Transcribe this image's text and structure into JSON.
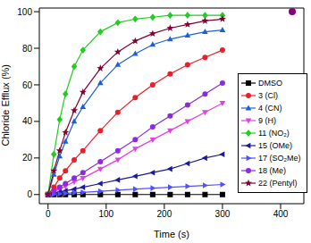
{
  "chart_data": {
    "type": "line",
    "xlabel": "Time (s)",
    "ylabel": "Chloride Efflux (%)",
    "x": [
      0,
      10,
      20,
      30,
      45,
      60,
      90,
      120,
      150,
      180,
      210,
      240,
      270,
      300
    ],
    "xlim": [
      -15,
      440
    ],
    "xticks": [
      0,
      100,
      200,
      300,
      400
    ],
    "ylim": [
      -5,
      102
    ],
    "yticks": [
      0,
      20,
      40,
      60,
      80,
      100
    ],
    "grid": false,
    "legend": "right",
    "series": [
      {
        "name": "DMSO",
        "color": "#000000",
        "marker": "square",
        "values": [
          0,
          0,
          0,
          0,
          0,
          0,
          0,
          0,
          0,
          0,
          0,
          0,
          0,
          0
        ]
      },
      {
        "name": "3 (Cl)",
        "color": "#e8202a",
        "marker": "circle",
        "values": [
          0,
          4,
          9,
          13,
          19,
          24,
          35,
          45,
          53,
          60,
          66,
          71,
          75,
          79
        ]
      },
      {
        "name": "4 (CN)",
        "color": "#1f5fd6",
        "marker": "triangle",
        "values": [
          0,
          11,
          21,
          29,
          40,
          48,
          61,
          71,
          77,
          82,
          85,
          87,
          89,
          90
        ]
      },
      {
        "name": "9 (H)",
        "color": "#e040e0",
        "marker": "triangle-down",
        "values": [
          0,
          1.5,
          3,
          4.5,
          7,
          9,
          14,
          19,
          25,
          30,
          35,
          40,
          45,
          50
        ]
      },
      {
        "name": "11 (NO₂)",
        "color": "#22cc22",
        "marker": "diamond",
        "values": [
          0,
          22,
          41,
          55,
          70,
          79,
          89,
          94,
          96,
          97,
          98,
          98,
          98,
          98
        ]
      },
      {
        "name": "15 (OMe)",
        "color": "#1a1a99",
        "marker": "triangle-left",
        "values": [
          0,
          0.7,
          1.4,
          2,
          3,
          4,
          6,
          8,
          10,
          12,
          14,
          17,
          20,
          22
        ]
      },
      {
        "name": "17 (SO₂Me)",
        "color": "#5050ff",
        "marker": "triangle-right",
        "values": [
          0,
          0.2,
          0.4,
          0.6,
          1,
          1.2,
          1.8,
          2.4,
          3,
          3.5,
          4,
          4.5,
          5,
          5.5
        ]
      },
      {
        "name": "18 (Me)",
        "color": "#8a2be2",
        "marker": "circle",
        "values": [
          0,
          2,
          4,
          6,
          9,
          12,
          18,
          24,
          30,
          37,
          43,
          49,
          55,
          61
        ]
      },
      {
        "name": "22 (Pentyl)",
        "color": "#800030",
        "marker": "star",
        "values": [
          0,
          13,
          24,
          34,
          46,
          56,
          69,
          78,
          84,
          88,
          91,
          93,
          95,
          96
        ]
      },
      {
        "type": "scatter",
        "color": "#800080",
        "marker": "circle",
        "x": [
          420
        ],
        "values": [
          100
        ]
      }
    ]
  }
}
